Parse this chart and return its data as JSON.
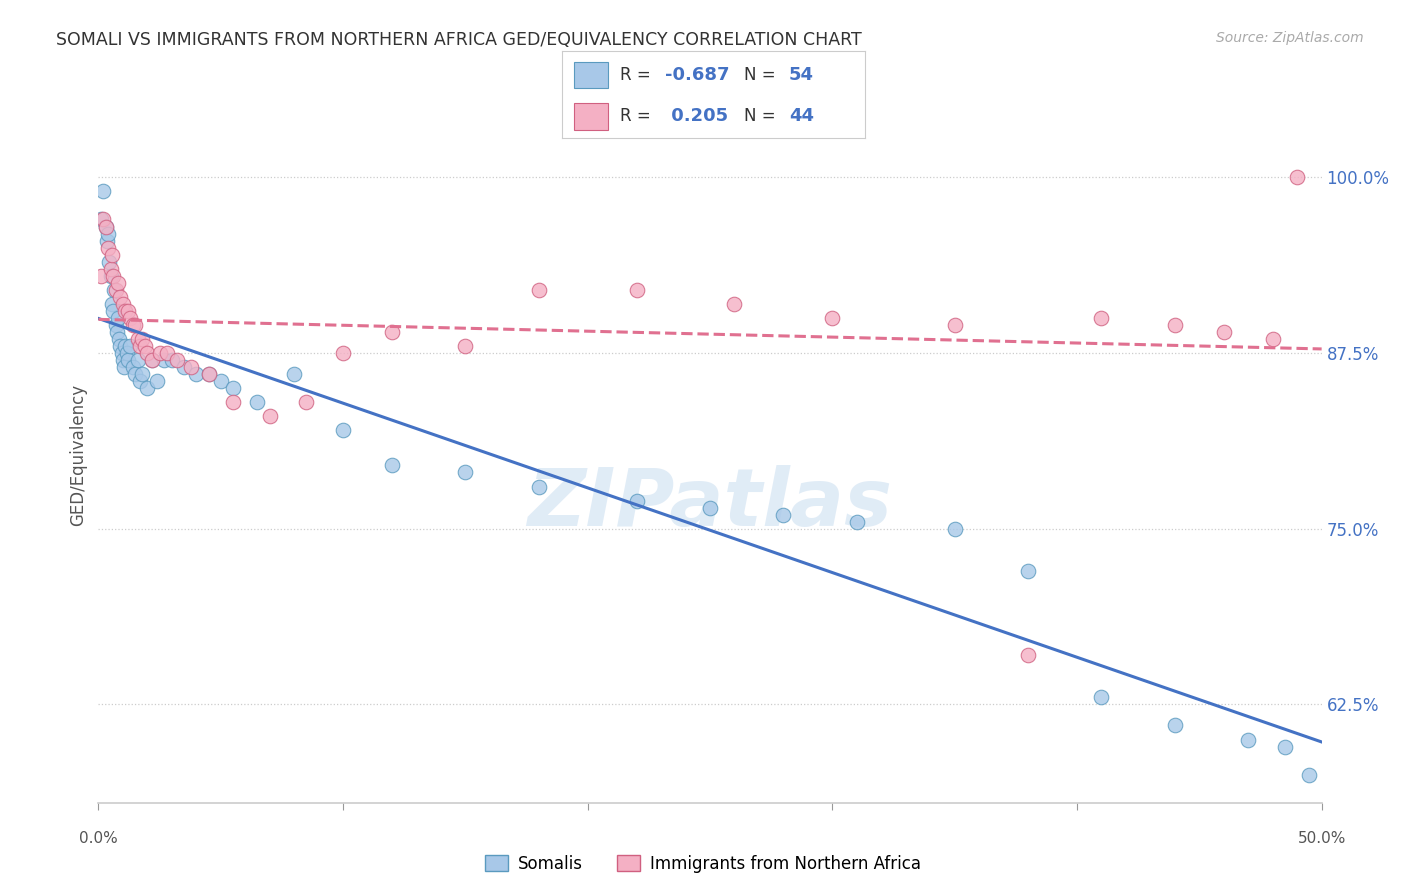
{
  "title": "SOMALI VS IMMIGRANTS FROM NORTHERN AFRICA GED/EQUIVALENCY CORRELATION CHART",
  "source": "Source: ZipAtlas.com",
  "ylabel": "GED/Equivalency",
  "ytick_values": [
    0.625,
    0.75,
    0.875,
    1.0
  ],
  "xmin": 0.0,
  "xmax": 50.0,
  "ymin": 0.555,
  "ymax": 1.05,
  "series1_label": "Somalis",
  "series2_label": "Immigrants from Northern Africa",
  "series1_color": "#a8c8e8",
  "series2_color": "#f4b0c4",
  "series1_edge": "#5a9abf",
  "series2_edge": "#d06080",
  "trend1_color": "#4472c4",
  "trend2_color": "#e07090",
  "legend_color1": "#a8c8e8",
  "legend_color2": "#f4b0c4",
  "watermark_text": "ZIPatlas",
  "somali_x": [
    0.1,
    0.2,
    0.3,
    0.35,
    0.4,
    0.45,
    0.5,
    0.55,
    0.6,
    0.65,
    0.7,
    0.75,
    0.8,
    0.85,
    0.9,
    0.95,
    1.0,
    1.05,
    1.1,
    1.15,
    1.2,
    1.3,
    1.4,
    1.5,
    1.6,
    1.7,
    1.8,
    2.0,
    2.2,
    2.4,
    2.7,
    3.0,
    3.5,
    4.0,
    4.5,
    5.0,
    5.5,
    6.5,
    8.0,
    10.0,
    12.0,
    15.0,
    18.0,
    22.0,
    25.0,
    28.0,
    31.0,
    35.0,
    38.0,
    41.0,
    44.0,
    47.0,
    48.5,
    49.5
  ],
  "somali_y": [
    0.97,
    0.99,
    0.965,
    0.955,
    0.96,
    0.94,
    0.93,
    0.91,
    0.905,
    0.92,
    0.895,
    0.89,
    0.9,
    0.885,
    0.88,
    0.875,
    0.87,
    0.865,
    0.88,
    0.875,
    0.87,
    0.88,
    0.865,
    0.86,
    0.87,
    0.855,
    0.86,
    0.85,
    0.87,
    0.855,
    0.87,
    0.87,
    0.865,
    0.86,
    0.86,
    0.855,
    0.85,
    0.84,
    0.86,
    0.82,
    0.795,
    0.79,
    0.78,
    0.77,
    0.765,
    0.76,
    0.755,
    0.75,
    0.72,
    0.63,
    0.61,
    0.6,
    0.595,
    0.575
  ],
  "northern_africa_x": [
    0.1,
    0.2,
    0.3,
    0.4,
    0.5,
    0.55,
    0.6,
    0.7,
    0.8,
    0.9,
    1.0,
    1.1,
    1.2,
    1.3,
    1.4,
    1.5,
    1.6,
    1.7,
    1.8,
    1.9,
    2.0,
    2.2,
    2.5,
    2.8,
    3.2,
    3.8,
    4.5,
    5.5,
    7.0,
    8.5,
    10.0,
    12.0,
    15.0,
    18.0,
    22.0,
    26.0,
    30.0,
    35.0,
    38.0,
    41.0,
    44.0,
    46.0,
    48.0,
    49.0
  ],
  "northern_africa_y": [
    0.93,
    0.97,
    0.965,
    0.95,
    0.935,
    0.945,
    0.93,
    0.92,
    0.925,
    0.915,
    0.91,
    0.905,
    0.905,
    0.9,
    0.895,
    0.895,
    0.885,
    0.88,
    0.885,
    0.88,
    0.875,
    0.87,
    0.875,
    0.875,
    0.87,
    0.865,
    0.86,
    0.84,
    0.83,
    0.84,
    0.875,
    0.89,
    0.88,
    0.92,
    0.92,
    0.91,
    0.9,
    0.895,
    0.66,
    0.9,
    0.895,
    0.89,
    0.885,
    1.0
  ]
}
